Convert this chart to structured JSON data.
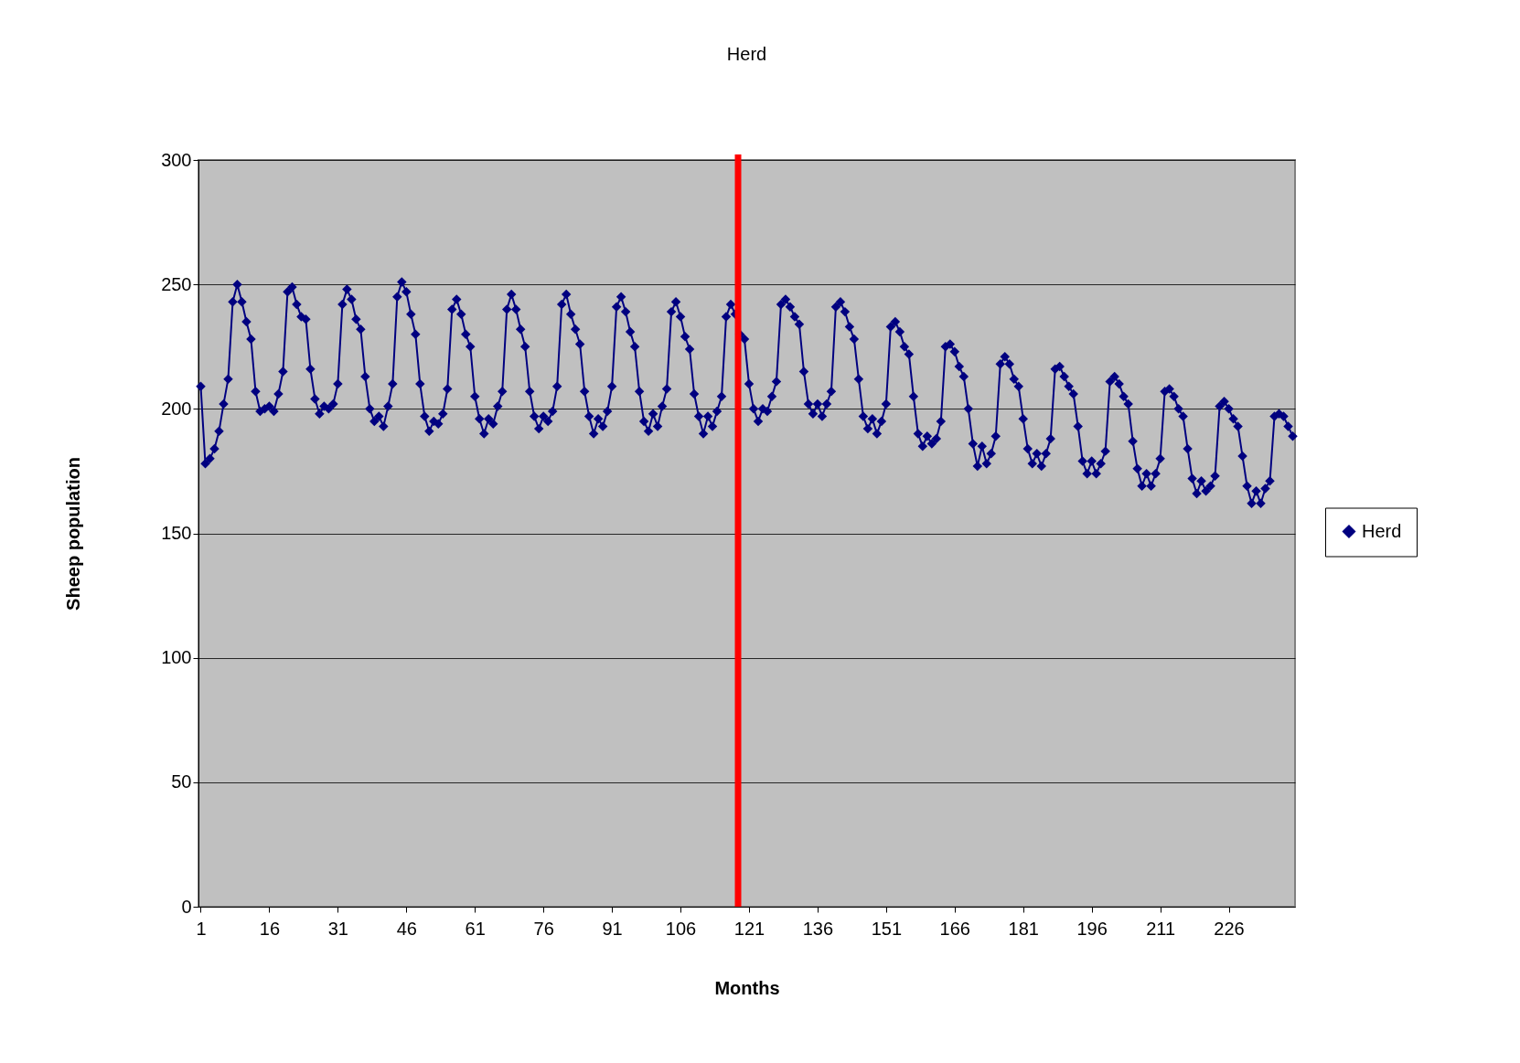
{
  "chart_data": {
    "type": "line",
    "title": "Herd",
    "xlabel": "Months",
    "ylabel": "Sheep population",
    "x": [
      1,
      2,
      3,
      4,
      5,
      6,
      7,
      8,
      9,
      10,
      11,
      12,
      13,
      14,
      15,
      16,
      17,
      18,
      19,
      20,
      21,
      22,
      23,
      24,
      25,
      26,
      27,
      28,
      29,
      30,
      31,
      32,
      33,
      34,
      35,
      36,
      37,
      38,
      39,
      40,
      41,
      42,
      43,
      44,
      45,
      46,
      47,
      48,
      49,
      50,
      51,
      52,
      53,
      54,
      55,
      56,
      57,
      58,
      59,
      60,
      61,
      62,
      63,
      64,
      65,
      66,
      67,
      68,
      69,
      70,
      71,
      72,
      73,
      74,
      75,
      76,
      77,
      78,
      79,
      80,
      81,
      82,
      83,
      84,
      85,
      86,
      87,
      88,
      89,
      90,
      91,
      92,
      93,
      94,
      95,
      96,
      97,
      98,
      99,
      100,
      101,
      102,
      103,
      104,
      105,
      106,
      107,
      108,
      109,
      110,
      111,
      112,
      113,
      114,
      115,
      116,
      117,
      118,
      119,
      120,
      121,
      122,
      123,
      124,
      125,
      126,
      127,
      128,
      129,
      130,
      131,
      132,
      133,
      134,
      135,
      136,
      137,
      138,
      139,
      140,
      141,
      142,
      143,
      144,
      145,
      146,
      147,
      148,
      149,
      150,
      151,
      152,
      153,
      154,
      155,
      156,
      157,
      158,
      159,
      160,
      161,
      162,
      163,
      164,
      165,
      166,
      167,
      168,
      169,
      170,
      171,
      172,
      173,
      174,
      175,
      176,
      177,
      178,
      179,
      180,
      181,
      182,
      183,
      184,
      185,
      186,
      187,
      188,
      189,
      190,
      191,
      192,
      193,
      194,
      195,
      196,
      197,
      198,
      199,
      200,
      201,
      202,
      203,
      204,
      205,
      206,
      207,
      208,
      209,
      210,
      211,
      212,
      213,
      214,
      215,
      216,
      217,
      218,
      219,
      220,
      221,
      222,
      223,
      224,
      225,
      226,
      227,
      228,
      229,
      230,
      231,
      232,
      233,
      234,
      235,
      236,
      237,
      238,
      239,
      240
    ],
    "series": [
      {
        "name": "Herd",
        "color": "#000080",
        "values": [
          209,
          178,
          180,
          184,
          191,
          202,
          212,
          243,
          250,
          243,
          235,
          228,
          207,
          199,
          200,
          201,
          199,
          206,
          215,
          247,
          249,
          242,
          237,
          236,
          216,
          204,
          198,
          201,
          200,
          202,
          210,
          242,
          248,
          244,
          236,
          232,
          213,
          200,
          195,
          197,
          193,
          201,
          210,
          245,
          251,
          247,
          238,
          230,
          210,
          197,
          191,
          195,
          194,
          198,
          208,
          240,
          244,
          238,
          230,
          225,
          205,
          196,
          190,
          196,
          194,
          201,
          207,
          240,
          246,
          240,
          232,
          225,
          207,
          197,
          192,
          197,
          195,
          199,
          209,
          242,
          246,
          238,
          232,
          226,
          207,
          197,
          190,
          196,
          193,
          199,
          209,
          241,
          245,
          239,
          231,
          225,
          207,
          195,
          191,
          198,
          193,
          201,
          208,
          239,
          243,
          237,
          229,
          224,
          206,
          197,
          190,
          197,
          193,
          199,
          205,
          237,
          242,
          238,
          230,
          228,
          210,
          200,
          195,
          200,
          199,
          205,
          211,
          242,
          244,
          241,
          237,
          234,
          215,
          202,
          198,
          202,
          197,
          202,
          207,
          241,
          243,
          239,
          233,
          228,
          212,
          197,
          192,
          196,
          190,
          195,
          202,
          233,
          235,
          231,
          225,
          222,
          205,
          190,
          185,
          189,
          186,
          188,
          195,
          225,
          226,
          223,
          217,
          213,
          200,
          186,
          177,
          185,
          178,
          182,
          189,
          218,
          221,
          218,
          212,
          209,
          196,
          184,
          178,
          182,
          177,
          182,
          188,
          216,
          217,
          213,
          209,
          206,
          193,
          179,
          174,
          179,
          174,
          178,
          183,
          211,
          213,
          210,
          205,
          202,
          187,
          176,
          169,
          174,
          169,
          174,
          180,
          207,
          208,
          205,
          200,
          197,
          184,
          172,
          166,
          171,
          167,
          169,
          173,
          201,
          203,
          200,
          196,
          193,
          181,
          169,
          162,
          167,
          162,
          168,
          171,
          197,
          198,
          197,
          193,
          189
        ]
      }
    ],
    "xlim": [
      0.5,
      240.5
    ],
    "xticks": [
      1,
      16,
      31,
      46,
      61,
      76,
      91,
      106,
      121,
      136,
      151,
      166,
      181,
      196,
      211,
      226
    ],
    "ylim": [
      0,
      300
    ],
    "yticks": [
      0,
      50,
      100,
      150,
      200,
      250,
      300
    ],
    "ref_lines": [
      {
        "axis": "x",
        "value": 118.6,
        "color": "#ff0000"
      }
    ],
    "grid": "y",
    "legend": "right",
    "marker": "diamond",
    "line_style": "solid"
  }
}
